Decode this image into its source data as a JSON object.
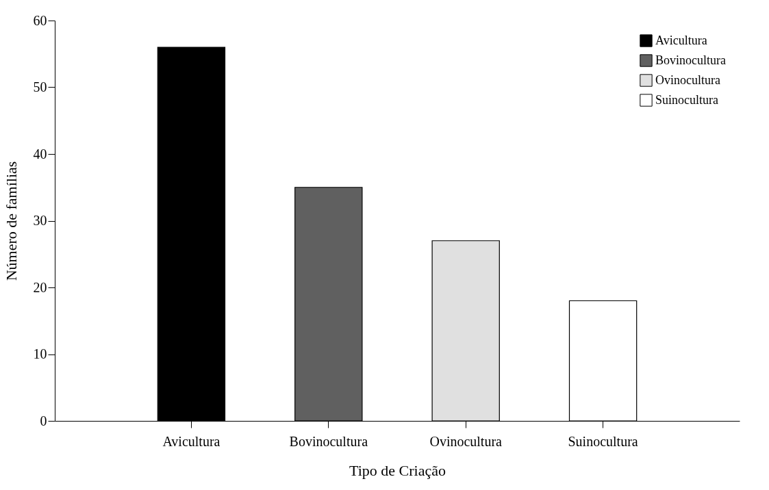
{
  "chart_data": {
    "type": "bar",
    "xlabel": "Tipo de Criação",
    "ylabel": "Número de famílias",
    "categories": [
      "Avicultura",
      "Bovinocultura",
      "Ovinocultura",
      "Suinocultura"
    ],
    "stacked": true,
    "series": [
      {
        "name": "Avicultura",
        "color": "#000000",
        "values": [
          56,
          null,
          null,
          null
        ]
      },
      {
        "name": "Bovinocultura",
        "color": "#606060",
        "values": [
          null,
          35,
          null,
          null
        ]
      },
      {
        "name": "Ovinocultura",
        "color": "#e0e0e0",
        "values": [
          null,
          null,
          27,
          null
        ]
      },
      {
        "name": "Suinocultura",
        "color": "#ffffff",
        "values": [
          null,
          null,
          null,
          18
        ]
      }
    ],
    "ylim": [
      0,
      60
    ],
    "yticks": [
      0,
      10,
      20,
      30,
      40,
      50,
      60
    ],
    "grid": false,
    "legend": "top right"
  }
}
